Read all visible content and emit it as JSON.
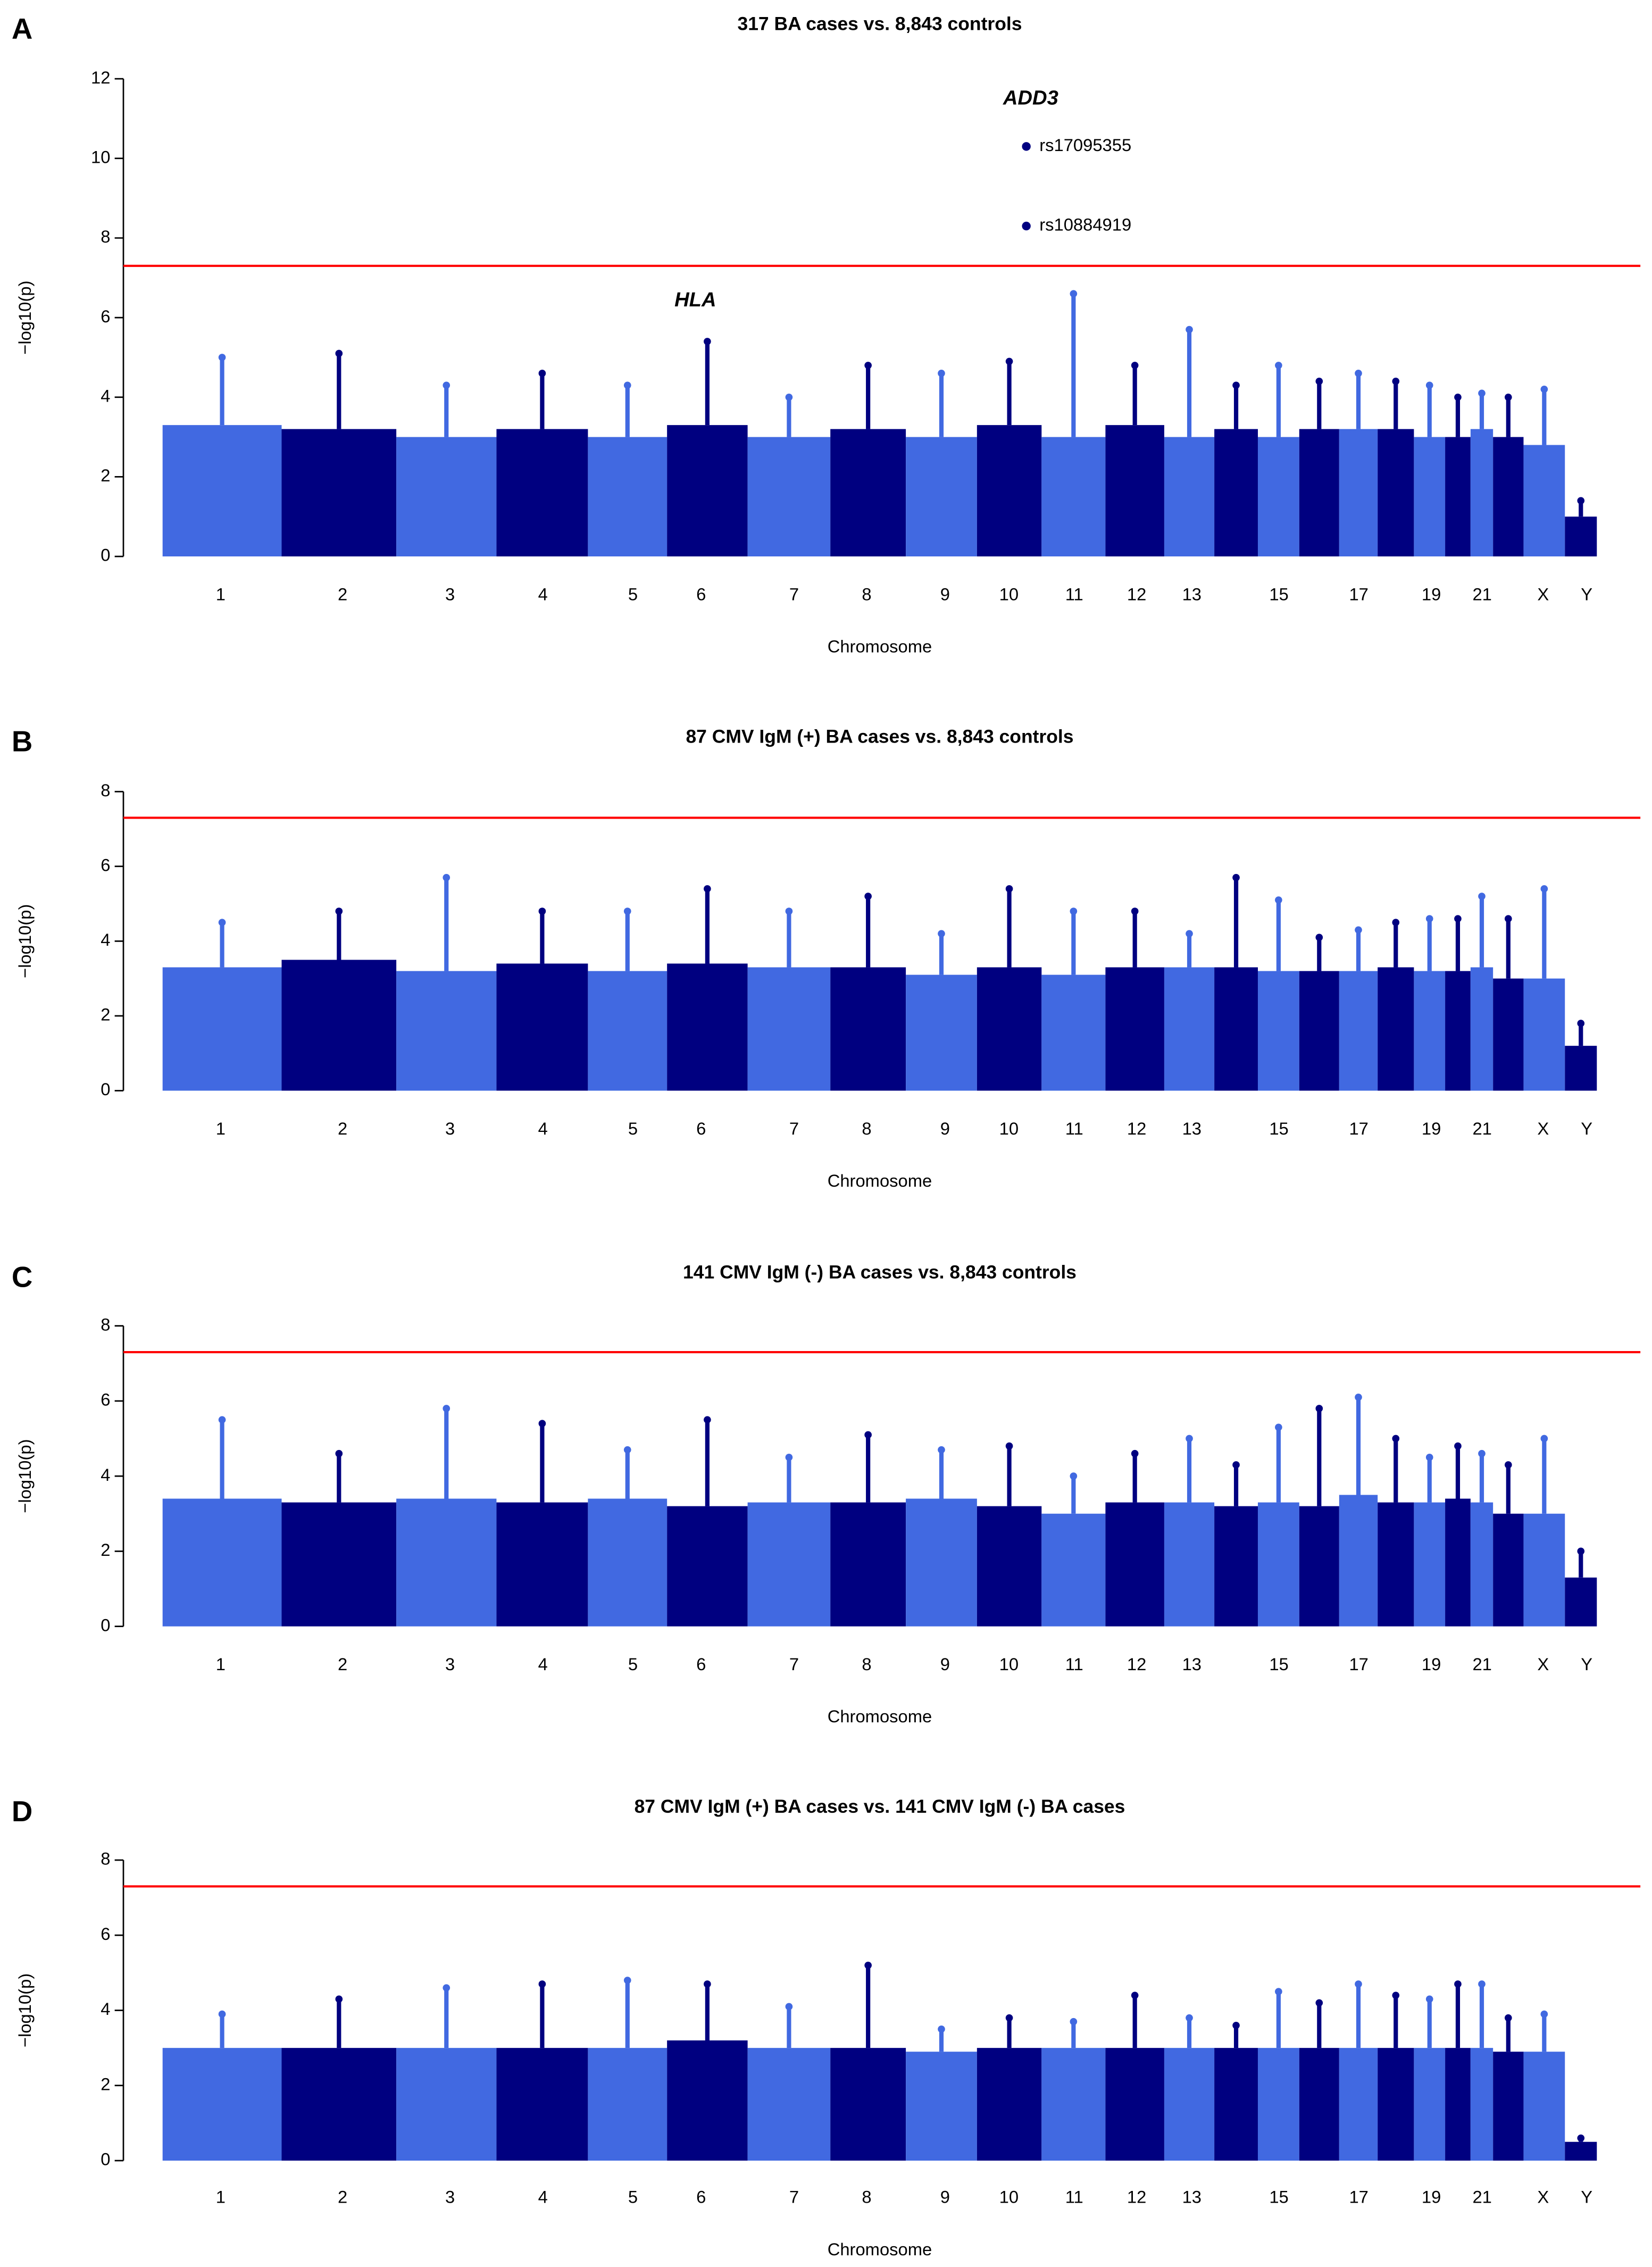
{
  "chart_data": [
    {
      "type": "manhattan",
      "panel": "A",
      "title": "317 BA cases vs. 8,843 controls",
      "xlabel": "Chromosome",
      "ylabel": "−log10(p)",
      "categories": [
        "1",
        "2",
        "3",
        "4",
        "5",
        "6",
        "7",
        "8",
        "9",
        "10",
        "11",
        "12",
        "13",
        null,
        "15",
        null,
        "17",
        null,
        "19",
        null,
        "21",
        null,
        "X",
        "Y"
      ],
      "values": [
        5.0,
        5.1,
        4.3,
        4.6,
        4.3,
        5.4,
        4.0,
        4.8,
        4.6,
        4.9,
        6.6,
        4.8,
        5.7,
        4.3,
        4.8,
        4.4,
        4.6,
        4.4,
        4.3,
        4.0,
        4.1,
        4.0,
        4.2,
        1.4
      ],
      "bulk": [
        3.3,
        3.2,
        3.0,
        3.2,
        3.0,
        3.3,
        3.0,
        3.2,
        3.0,
        3.3,
        3.0,
        3.3,
        3.0,
        3.2,
        3.0,
        3.2,
        3.2,
        3.2,
        3.0,
        3.0,
        3.2,
        3.0,
        2.8,
        1.0
      ],
      "colors": [
        "#4169e1",
        "#000080"
      ],
      "threshold": 7.3,
      "threshold_color": "#ff0000",
      "ylim": [
        0,
        12
      ],
      "yticks": [
        0,
        2,
        4,
        6,
        8,
        10,
        12
      ],
      "genes": [
        "ADD3",
        "HLA"
      ],
      "points": [
        {
          "label": "rs17095355",
          "value": 10.3
        },
        {
          "label": "rs10884919",
          "value": 8.3
        }
      ]
    },
    {
      "type": "manhattan",
      "panel": "B",
      "title": "87 CMV IgM (+) BA cases vs. 8,843 controls",
      "xlabel": "Chromosome",
      "ylabel": "−log10(p)",
      "categories": [
        "1",
        "2",
        "3",
        "4",
        "5",
        "6",
        "7",
        "8",
        "9",
        "10",
        "11",
        "12",
        "13",
        null,
        "15",
        null,
        "17",
        null,
        "19",
        null,
        "21",
        null,
        "X",
        "Y"
      ],
      "values": [
        4.5,
        4.8,
        5.7,
        4.8,
        4.8,
        5.4,
        4.8,
        5.2,
        4.2,
        5.4,
        4.8,
        4.8,
        4.2,
        5.7,
        5.1,
        4.1,
        4.3,
        4.5,
        4.6,
        4.6,
        5.2,
        4.6,
        5.4,
        1.8
      ],
      "bulk": [
        3.3,
        3.5,
        3.2,
        3.4,
        3.2,
        3.4,
        3.3,
        3.3,
        3.1,
        3.3,
        3.1,
        3.3,
        3.3,
        3.3,
        3.2,
        3.2,
        3.2,
        3.3,
        3.2,
        3.2,
        3.3,
        3.0,
        3.0,
        1.2
      ],
      "colors": [
        "#4169e1",
        "#000080"
      ],
      "threshold": 7.3,
      "threshold_color": "#ff0000",
      "ylim": [
        0,
        8
      ],
      "yticks": [
        0,
        2,
        4,
        6,
        8
      ]
    },
    {
      "type": "manhattan",
      "panel": "C",
      "title": "141 CMV IgM (-) BA cases vs. 8,843 controls",
      "xlabel": "Chromosome",
      "ylabel": "−log10(p)",
      "categories": [
        "1",
        "2",
        "3",
        "4",
        "5",
        "6",
        "7",
        "8",
        "9",
        "10",
        "11",
        "12",
        "13",
        null,
        "15",
        null,
        "17",
        null,
        "19",
        null,
        "21",
        null,
        "X",
        "Y"
      ],
      "values": [
        5.5,
        4.6,
        5.8,
        5.4,
        4.7,
        5.5,
        4.5,
        5.1,
        4.7,
        4.8,
        4.0,
        4.6,
        5.0,
        4.3,
        5.3,
        5.8,
        6.1,
        5.0,
        4.5,
        4.8,
        4.6,
        4.3,
        5.0,
        2.0
      ],
      "bulk": [
        3.4,
        3.3,
        3.4,
        3.3,
        3.4,
        3.2,
        3.3,
        3.3,
        3.4,
        3.2,
        3.0,
        3.3,
        3.3,
        3.2,
        3.3,
        3.2,
        3.5,
        3.3,
        3.3,
        3.4,
        3.3,
        3.0,
        3.0,
        1.3
      ],
      "colors": [
        "#4169e1",
        "#000080"
      ],
      "threshold": 7.3,
      "threshold_color": "#ff0000",
      "ylim": [
        0,
        8
      ],
      "yticks": [
        0,
        2,
        4,
        6,
        8
      ]
    },
    {
      "type": "manhattan",
      "panel": "D",
      "title": "87 CMV IgM (+) BA cases vs. 141 CMV IgM (-) BA cases",
      "xlabel": "Chromosome",
      "ylabel": "−log10(p)",
      "categories": [
        "1",
        "2",
        "3",
        "4",
        "5",
        "6",
        "7",
        "8",
        "9",
        "10",
        "11",
        "12",
        "13",
        null,
        "15",
        null,
        "17",
        null,
        "19",
        null,
        "21",
        null,
        "X",
        "Y"
      ],
      "values": [
        3.9,
        4.3,
        4.6,
        4.7,
        4.8,
        4.7,
        4.1,
        5.2,
        3.5,
        3.8,
        3.7,
        4.4,
        3.8,
        3.6,
        4.5,
        4.2,
        4.7,
        4.4,
        4.3,
        4.7,
        4.7,
        3.8,
        3.9,
        0.6
      ],
      "bulk": [
        3.0,
        3.0,
        3.0,
        3.0,
        3.0,
        3.2,
        3.0,
        3.0,
        2.9,
        3.0,
        3.0,
        3.0,
        3.0,
        3.0,
        3.0,
        3.0,
        3.0,
        3.0,
        3.0,
        3.0,
        3.0,
        2.9,
        2.9,
        0.5
      ],
      "colors": [
        "#4169e1",
        "#000080"
      ],
      "threshold": 7.3,
      "threshold_color": "#ff0000",
      "ylim": [
        0,
        8
      ],
      "yticks": [
        0,
        2,
        4,
        6,
        8
      ]
    }
  ]
}
